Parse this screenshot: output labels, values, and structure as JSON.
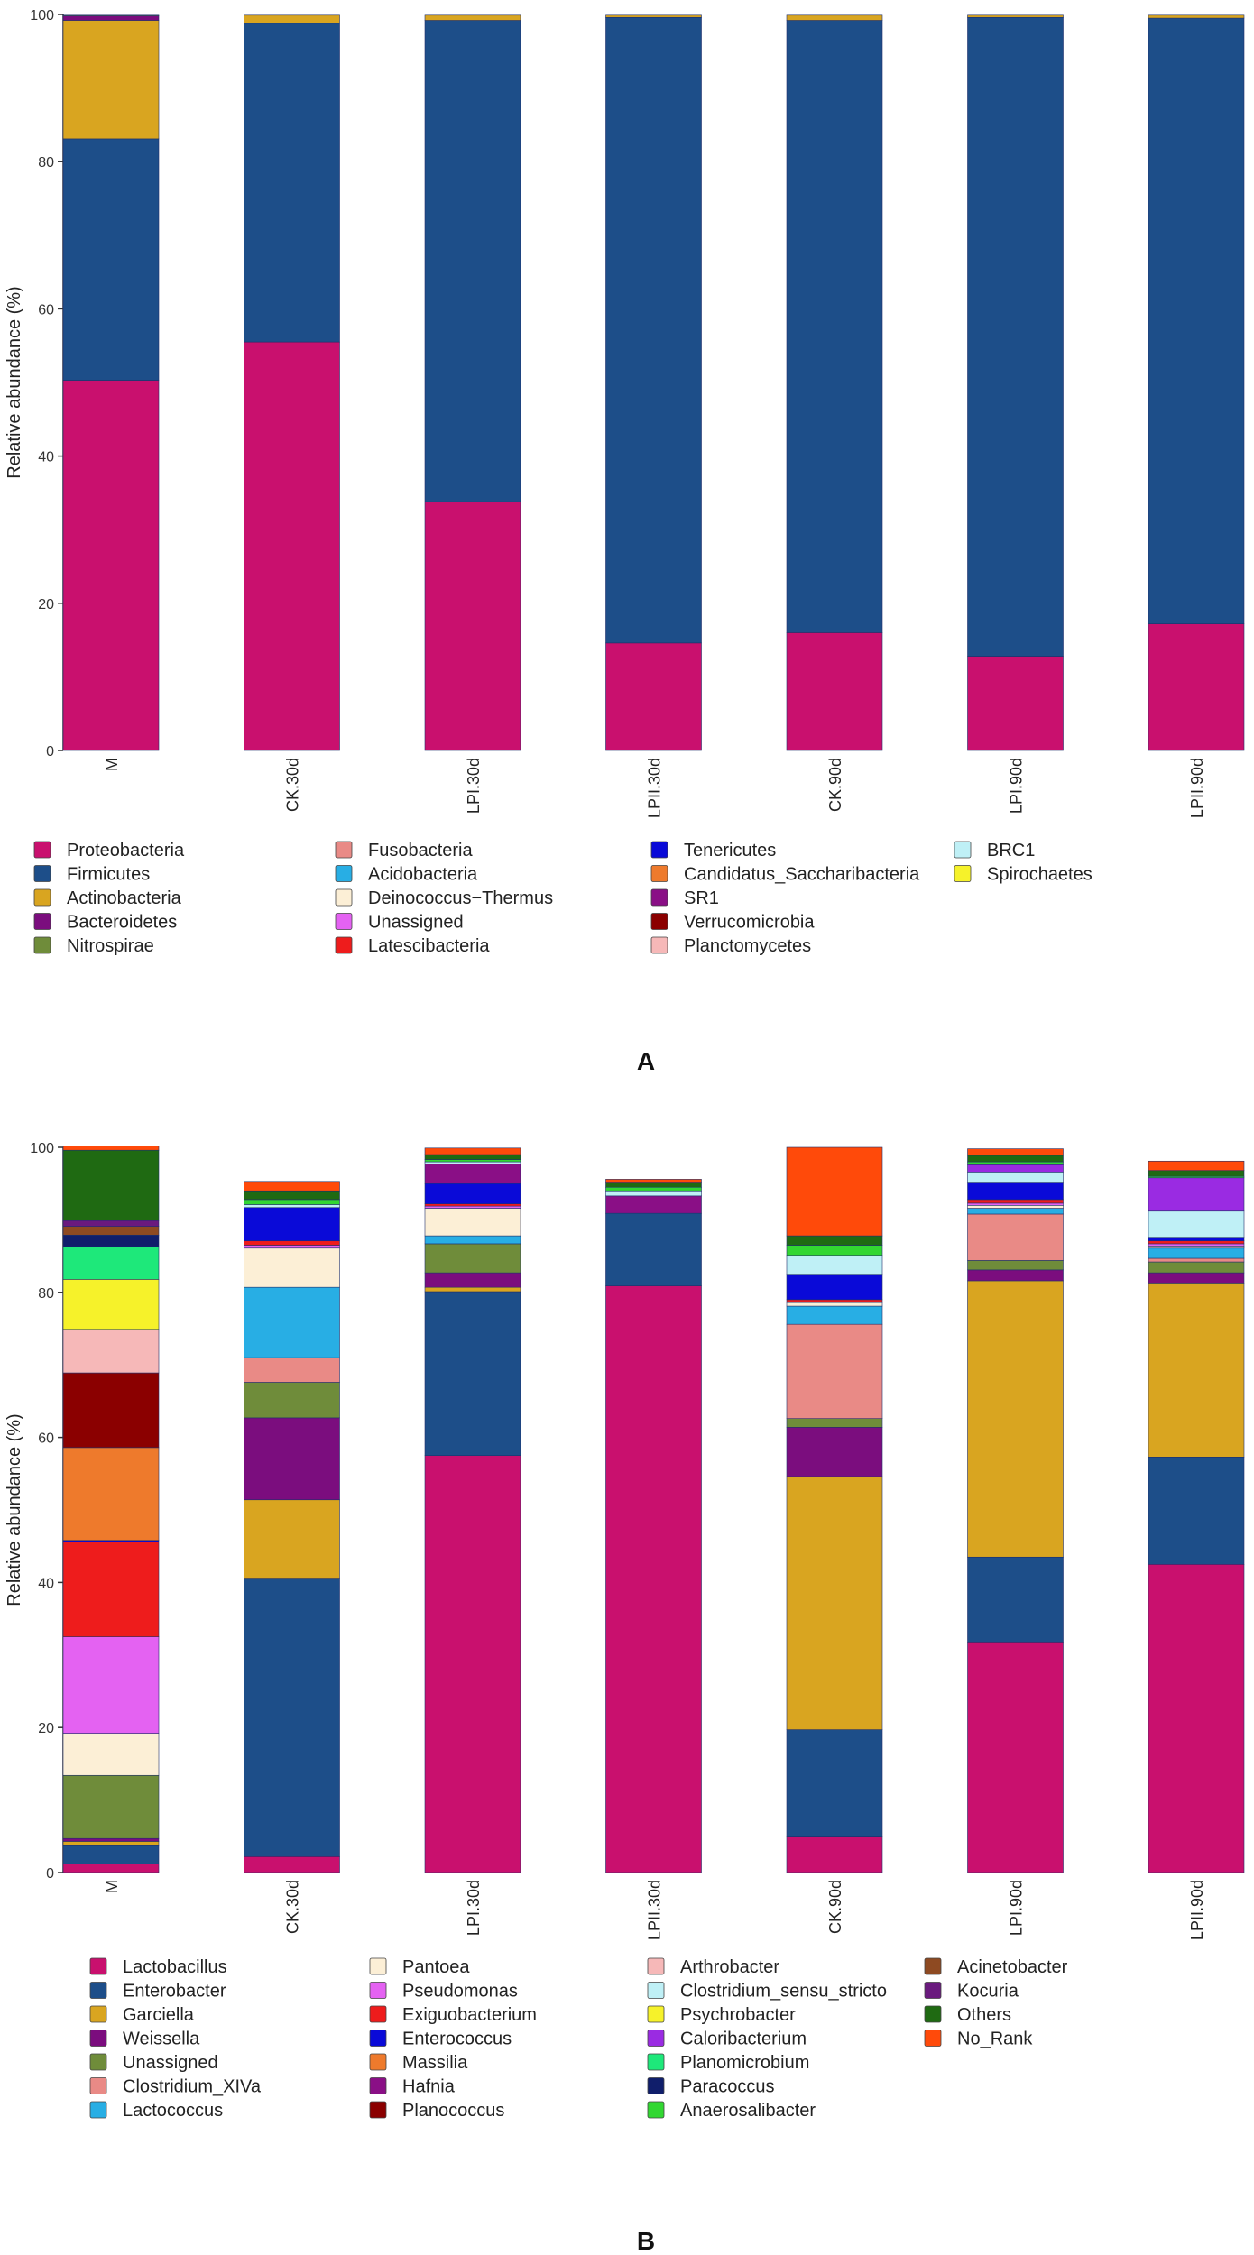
{
  "panels": [
    {
      "label": "A"
    },
    {
      "label": "B"
    }
  ],
  "chart_data": [
    {
      "type": "bar",
      "stacked": true,
      "panel": "A",
      "title": "",
      "xlabel": "",
      "ylabel": "Relative abundance (%)",
      "ylim": [
        0,
        100
      ],
      "yticks": [
        0,
        20,
        40,
        60,
        80,
        100
      ],
      "categories": [
        "M",
        "CK.30d",
        "LPI.30d",
        "LPII.30d",
        "CK.90d",
        "LPI.90d",
        "LPII.90d"
      ],
      "series": [
        {
          "name": "Proteobacteria",
          "color": "#C9106E",
          "values": [
            50.3,
            55.5,
            33.8,
            14.6,
            16.0,
            12.8,
            17.2
          ]
        },
        {
          "name": "Firmicutes",
          "color": "#1D4E89",
          "values": [
            32.8,
            43.3,
            65.4,
            85.0,
            83.2,
            86.8,
            82.3
          ]
        },
        {
          "name": "Actinobacteria",
          "color": "#D9A520",
          "values": [
            16.1,
            1.1,
            0.7,
            0.3,
            0.7,
            0.3,
            0.4
          ]
        },
        {
          "name": "Bacteroidetes",
          "color": "#7B0D7E",
          "values": [
            0.6,
            0.0,
            0.0,
            0.0,
            0.0,
            0.0,
            0.0
          ]
        },
        {
          "name": "Nitrospirae",
          "color": "#6F8C3A",
          "values": [
            0.1,
            0.0,
            0.0,
            0.0,
            0.0,
            0.0,
            0.0
          ]
        },
        {
          "name": "Fusobacteria",
          "color": "#E98A86",
          "values": [
            0.0,
            0.0,
            0.0,
            0.0,
            0.0,
            0.0,
            0.0
          ]
        },
        {
          "name": "Acidobacteria",
          "color": "#28AEE4",
          "values": [
            0.0,
            0.0,
            0.0,
            0.0,
            0.0,
            0.0,
            0.0
          ]
        },
        {
          "name": "Deinococcus−Thermus",
          "color": "#FCEFD6",
          "values": [
            0.0,
            0.0,
            0.0,
            0.0,
            0.0,
            0.0,
            0.0
          ]
        },
        {
          "name": "Unassigned",
          "color": "#E462F2",
          "values": [
            0.0,
            0.0,
            0.0,
            0.0,
            0.0,
            0.0,
            0.0
          ]
        },
        {
          "name": "Latescibacteria",
          "color": "#EE1C1C",
          "values": [
            0.0,
            0.0,
            0.0,
            0.0,
            0.0,
            0.0,
            0.0
          ]
        },
        {
          "name": "Tenericutes",
          "color": "#0A0AD8",
          "values": [
            0.0,
            0.0,
            0.0,
            0.0,
            0.0,
            0.0,
            0.0
          ]
        },
        {
          "name": "Candidatus_Saccharibacteria",
          "color": "#EE7A2C",
          "values": [
            0.0,
            0.0,
            0.0,
            0.0,
            0.0,
            0.0,
            0.0
          ]
        },
        {
          "name": "SR1",
          "color": "#8A0F86",
          "values": [
            0.0,
            0.0,
            0.0,
            0.0,
            0.0,
            0.0,
            0.0
          ]
        },
        {
          "name": "Verrucomicrobia",
          "color": "#8B0000",
          "values": [
            0.0,
            0.0,
            0.0,
            0.0,
            0.0,
            0.0,
            0.0
          ]
        },
        {
          "name": "Planctomycetes",
          "color": "#F6B8B8",
          "values": [
            0.0,
            0.0,
            0.0,
            0.0,
            0.0,
            0.0,
            0.0
          ]
        },
        {
          "name": "BRC1",
          "color": "#BFF0F6",
          "values": [
            0.0,
            0.0,
            0.0,
            0.0,
            0.0,
            0.0,
            0.0
          ]
        },
        {
          "name": "Spirochaetes",
          "color": "#F6F22A",
          "values": [
            0.0,
            0.0,
            0.0,
            0.0,
            0.0,
            0.0,
            0.0
          ]
        }
      ]
    },
    {
      "type": "bar",
      "stacked": true,
      "panel": "B",
      "title": "",
      "xlabel": "",
      "ylabel": "Relative abundance (%)",
      "ylim": [
        0,
        100
      ],
      "yticks": [
        0,
        20,
        40,
        60,
        80,
        100
      ],
      "categories": [
        "M",
        "CK.30d",
        "LPI.30d",
        "LPII.30d",
        "CK.90d",
        "LPI.90d",
        "LPII.90d"
      ],
      "series": [
        {
          "name": "Lactobacillus",
          "color": "#C9106E",
          "values": [
            1.2,
            2.2,
            57.5,
            80.9,
            4.9,
            31.8,
            42.5
          ]
        },
        {
          "name": "Enterobacter",
          "color": "#1D4E89",
          "values": [
            2.5,
            38.4,
            22.6,
            10.0,
            14.8,
            11.7,
            14.8
          ]
        },
        {
          "name": "Garciella",
          "color": "#D9A520",
          "values": [
            0.6,
            10.8,
            0.6,
            0.0,
            34.9,
            38.1,
            24.0
          ]
        },
        {
          "name": "Weissella",
          "color": "#7B0D7E",
          "values": [
            0.4,
            11.3,
            2.0,
            0.0,
            6.8,
            1.5,
            1.4
          ]
        },
        {
          "name": "Unassigned",
          "color": "#6F8C3A",
          "values": [
            8.7,
            4.9,
            4.0,
            0.0,
            1.2,
            1.3,
            1.5
          ]
        },
        {
          "name": "Clostridium_XIVa",
          "color": "#E98A86",
          "values": [
            0.0,
            3.4,
            0.0,
            0.0,
            13.0,
            6.4,
            0.5
          ]
        },
        {
          "name": "Lactococcus",
          "color": "#28AEE4",
          "values": [
            0.0,
            9.7,
            1.1,
            0.0,
            2.5,
            0.8,
            1.4
          ]
        },
        {
          "name": "Pantoea",
          "color": "#FCEFD6",
          "values": [
            5.8,
            5.4,
            3.8,
            0.0,
            0.5,
            0.4,
            0.3
          ]
        },
        {
          "name": "Pseudomonas",
          "color": "#E462F2",
          "values": [
            13.3,
            0.4,
            0.3,
            0.0,
            0.1,
            0.3,
            0.3
          ]
        },
        {
          "name": "Exiguobacterium",
          "color": "#EE1C1C",
          "values": [
            13.1,
            0.6,
            0.3,
            0.0,
            0.3,
            0.5,
            0.4
          ]
        },
        {
          "name": "Enterococcus",
          "color": "#0A0AD8",
          "values": [
            0.2,
            4.6,
            2.8,
            0.0,
            3.5,
            2.4,
            0.5
          ]
        },
        {
          "name": "Massilia",
          "color": "#EE7A2C",
          "values": [
            12.8,
            0.0,
            0.0,
            0.0,
            0.0,
            0.0,
            0.0
          ]
        },
        {
          "name": "Hafnia",
          "color": "#8A0F86",
          "values": [
            0.0,
            0.0,
            2.7,
            2.4,
            0.0,
            0.0,
            0.0
          ]
        },
        {
          "name": "Planococcus",
          "color": "#8B0000",
          "values": [
            10.3,
            0.0,
            0.0,
            0.0,
            0.0,
            0.0,
            0.0
          ]
        },
        {
          "name": "Arthrobacter",
          "color": "#F6B8B8",
          "values": [
            6.0,
            0.0,
            0.0,
            0.0,
            0.0,
            0.0,
            0.0
          ]
        },
        {
          "name": "Clostridium_sensu_stricto",
          "color": "#BFF0F6",
          "values": [
            0.0,
            0.4,
            0.3,
            0.7,
            2.6,
            1.4,
            3.6
          ]
        },
        {
          "name": "Psychrobacter",
          "color": "#F6F22A",
          "values": [
            6.9,
            0.0,
            0.0,
            0.0,
            0.0,
            0.0,
            0.0
          ]
        },
        {
          "name": "Caloribacterium",
          "color": "#9A2BE2",
          "values": [
            0.0,
            0.0,
            0.0,
            0.0,
            0.0,
            1.0,
            4.6
          ]
        },
        {
          "name": "Planomicrobium",
          "color": "#1EE87A",
          "values": [
            4.5,
            0.0,
            0.0,
            0.0,
            0.0,
            0.0,
            0.0
          ]
        },
        {
          "name": "Paracoccus",
          "color": "#101E6B",
          "values": [
            1.6,
            0.0,
            0.0,
            0.0,
            0.0,
            0.0,
            0.0
          ]
        },
        {
          "name": "Anaerosalibacter",
          "color": "#32D732",
          "values": [
            0.0,
            0.7,
            0.3,
            0.5,
            1.4,
            0.4,
            0.2
          ]
        },
        {
          "name": "Acinetobacter",
          "color": "#8E4A22",
          "values": [
            1.2,
            0.0,
            0.0,
            0.0,
            0.0,
            0.0,
            0.0
          ]
        },
        {
          "name": "Kocuria",
          "color": "#6A1A7E",
          "values": [
            0.8,
            0.0,
            0.0,
            0.0,
            0.0,
            0.0,
            0.0
          ]
        },
        {
          "name": "Others",
          "color": "#1F6A12",
          "values": [
            9.7,
            1.2,
            0.7,
            0.7,
            1.3,
            0.9,
            0.8
          ]
        },
        {
          "name": "No_Rank",
          "color": "#FF4A0A",
          "values": [
            0.6,
            1.3,
            0.9,
            0.4,
            12.2,
            0.9,
            1.3
          ]
        }
      ]
    }
  ]
}
